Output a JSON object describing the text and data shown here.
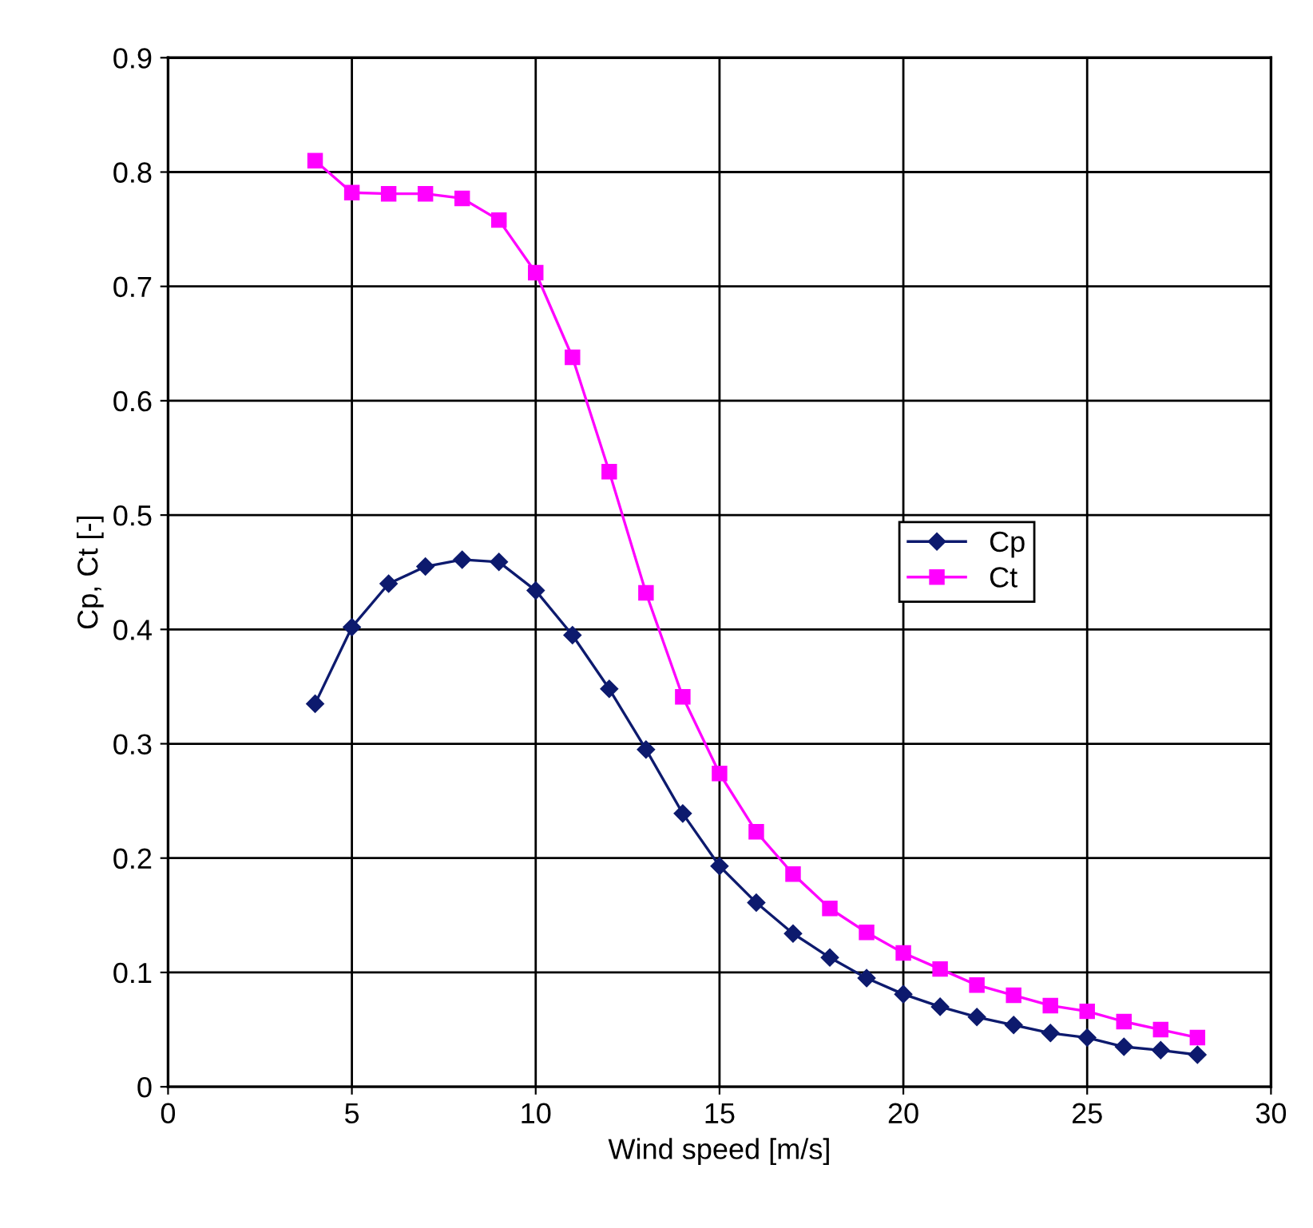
{
  "chart_data": {
    "type": "line",
    "xlabel": "Wind speed [m/s]",
    "ylabel": "Cp, Ct [-]",
    "x": [
      4,
      5,
      6,
      7,
      8,
      9,
      10,
      11,
      12,
      13,
      14,
      15,
      16,
      17,
      18,
      19,
      20,
      21,
      22,
      23,
      24,
      25,
      26,
      27,
      28
    ],
    "series": [
      {
        "name": "Cp",
        "color": "#0d1a6e",
        "marker": "diamond",
        "values": [
          0.335,
          0.402,
          0.44,
          0.455,
          0.461,
          0.459,
          0.434,
          0.395,
          0.348,
          0.295,
          0.239,
          0.193,
          0.161,
          0.134,
          0.113,
          0.095,
          0.081,
          0.07,
          0.061,
          0.054,
          0.047,
          0.043,
          0.035,
          0.032,
          0.028
        ]
      },
      {
        "name": "Ct",
        "color": "#ff00ff",
        "marker": "square",
        "values": [
          0.81,
          0.782,
          0.781,
          0.781,
          0.777,
          0.758,
          0.712,
          0.638,
          0.538,
          0.432,
          0.341,
          0.274,
          0.223,
          0.186,
          0.156,
          0.135,
          0.117,
          0.103,
          0.089,
          0.08,
          0.071,
          0.066,
          0.057,
          0.05,
          0.043
        ]
      }
    ],
    "xlim": [
      0,
      30
    ],
    "xticks": [
      0,
      5,
      10,
      15,
      20,
      25,
      30
    ],
    "ylim": [
      0,
      0.9
    ],
    "yticks": [
      0,
      0.1,
      0.2,
      0.3,
      0.4,
      0.5,
      0.6,
      0.7,
      0.8,
      0.9
    ],
    "grid": true,
    "legend": "right"
  }
}
